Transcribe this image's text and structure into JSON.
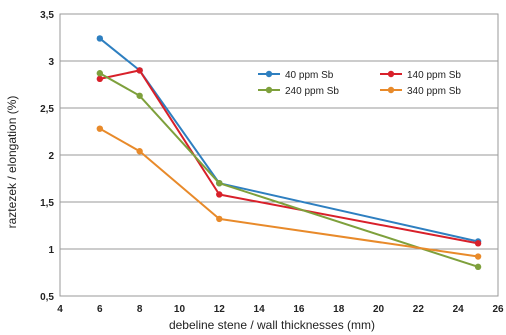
{
  "chart_data": {
    "type": "line",
    "xlabel": "debeline stene / wall thicknesses (mm)",
    "ylabel": "raztezek / elongation (%)",
    "xlim": [
      4,
      26
    ],
    "ylim": [
      0.5,
      3.5
    ],
    "xticks": [
      4,
      6,
      8,
      10,
      12,
      14,
      16,
      18,
      20,
      22,
      24,
      26
    ],
    "yticks": [
      0.5,
      1,
      1.5,
      2,
      2.5,
      3,
      3.5
    ],
    "xtick_labels": [
      "4",
      "6",
      "8",
      "10",
      "12",
      "14",
      "16",
      "18",
      "20",
      "22",
      "24",
      "26"
    ],
    "ytick_labels": [
      "0,5",
      "1",
      "1,5",
      "2",
      "2,5",
      "3",
      "3,5"
    ],
    "grid": "horizontal",
    "legend": "top-right",
    "series": [
      {
        "name": "40 ppm Sb",
        "color": "#2e7fc0",
        "x": [
          6,
          8,
          12,
          25
        ],
        "y": [
          3.24,
          2.9,
          1.7,
          1.08
        ]
      },
      {
        "name": "140 ppm Sb",
        "color": "#d8202a",
        "x": [
          6,
          8,
          12,
          25
        ],
        "y": [
          2.81,
          2.9,
          1.58,
          1.06
        ]
      },
      {
        "name": "240 ppm Sb",
        "color": "#7ea03c",
        "x": [
          6,
          8,
          12,
          25
        ],
        "y": [
          2.87,
          2.63,
          1.7,
          0.81
        ]
      },
      {
        "name": "340 ppm Sb",
        "color": "#e88a2a",
        "x": [
          6,
          8,
          12,
          25
        ],
        "y": [
          2.28,
          2.04,
          1.32,
          0.92
        ]
      }
    ]
  }
}
